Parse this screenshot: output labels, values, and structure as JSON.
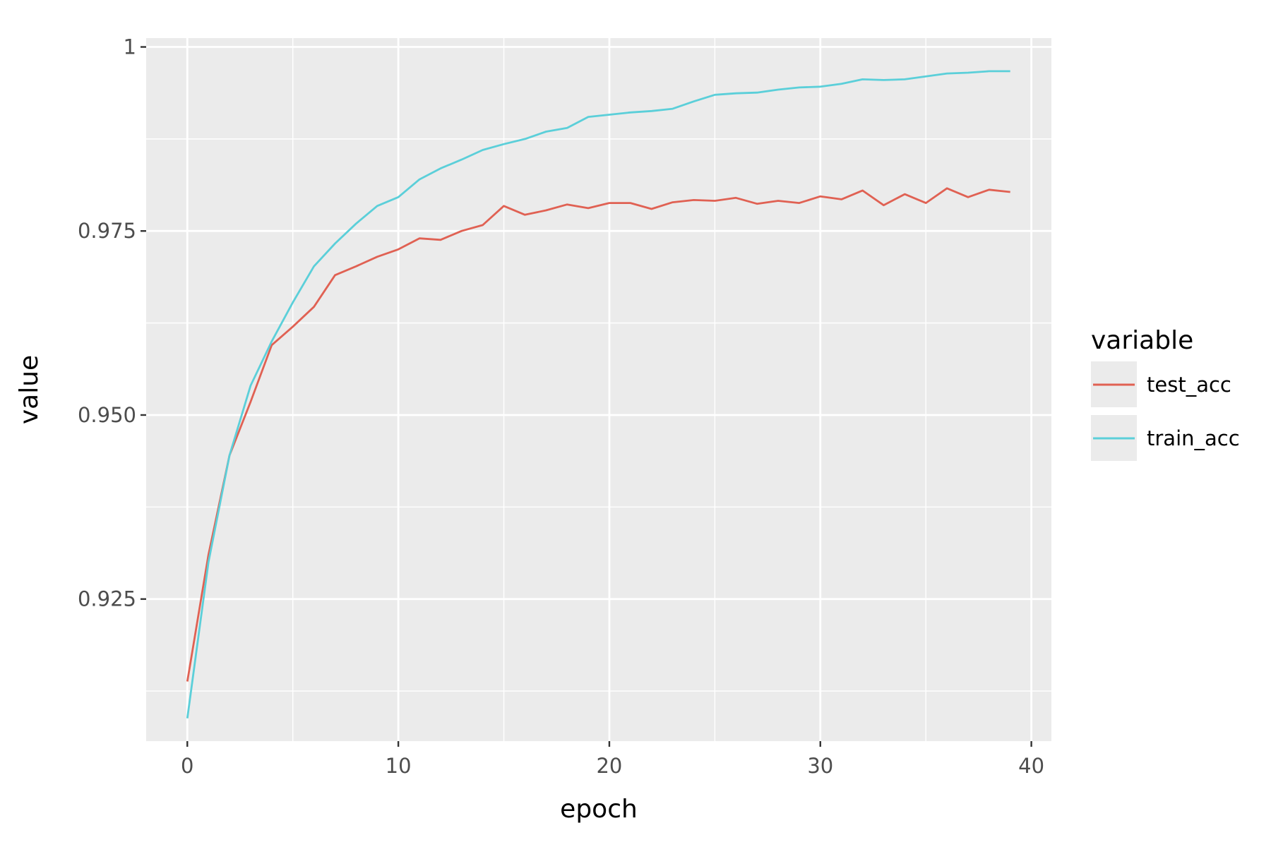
{
  "chart_data": {
    "type": "line",
    "xlabel": "epoch",
    "ylabel": "value",
    "xlim": [
      -1.95,
      40.95
    ],
    "ylim": [
      0.9057,
      1.0012
    ],
    "x_ticks": [
      0,
      10,
      20,
      30,
      40
    ],
    "x_tick_labels": [
      "0",
      "10",
      "20",
      "30",
      "40"
    ],
    "x_minor_ticks": [
      5,
      15,
      25,
      35
    ],
    "y_ticks": [
      0.925,
      0.95,
      0.975,
      1.0
    ],
    "y_tick_labels": [
      "0.925",
      "0.950",
      "0.975",
      "1"
    ],
    "y_minor_ticks": [
      0.9125,
      0.9375,
      0.9625,
      0.9875
    ],
    "grid": true,
    "background": "#ebebeb",
    "legend": {
      "title": "variable",
      "position": "right"
    },
    "x": [
      0,
      1,
      2,
      3,
      4,
      5,
      6,
      7,
      8,
      9,
      10,
      11,
      12,
      13,
      14,
      15,
      16,
      17,
      18,
      19,
      20,
      21,
      22,
      23,
      24,
      25,
      26,
      27,
      28,
      29,
      30,
      31,
      32,
      33,
      34,
      35,
      36,
      37,
      38,
      39
    ],
    "series": [
      {
        "name": "test_acc",
        "color": "#e06153",
        "values": [
          0.9138,
          0.931,
          0.9445,
          0.9518,
          0.9595,
          0.962,
          0.9647,
          0.969,
          0.9702,
          0.9715,
          0.9725,
          0.974,
          0.9738,
          0.975,
          0.9758,
          0.9784,
          0.9772,
          0.9778,
          0.9786,
          0.9781,
          0.9788,
          0.9788,
          0.978,
          0.9789,
          0.9792,
          0.9791,
          0.9795,
          0.9787,
          0.9791,
          0.9788,
          0.9797,
          0.9793,
          0.9805,
          0.9785,
          0.98,
          0.9788,
          0.9808,
          0.9796,
          0.9806,
          0.9803
        ]
      },
      {
        "name": "train_acc",
        "color": "#5bcfd9",
        "values": [
          0.9088,
          0.93,
          0.9445,
          0.954,
          0.96,
          0.9653,
          0.9702,
          0.9733,
          0.976,
          0.9784,
          0.9796,
          0.982,
          0.9835,
          0.9847,
          0.986,
          0.9868,
          0.9875,
          0.9885,
          0.989,
          0.9905,
          0.9908,
          0.9911,
          0.9913,
          0.9916,
          0.9926,
          0.9935,
          0.9937,
          0.9938,
          0.9942,
          0.9945,
          0.9946,
          0.995,
          0.9956,
          0.9955,
          0.9956,
          0.996,
          0.9964,
          0.9965,
          0.9967,
          0.9967
        ]
      }
    ]
  }
}
